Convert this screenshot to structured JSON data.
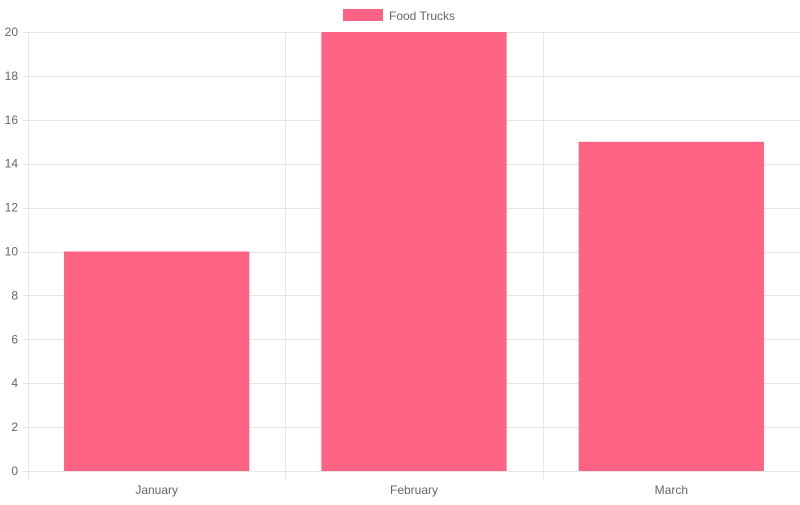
{
  "chart_data": {
    "type": "bar",
    "categories": [
      "January",
      "February",
      "March"
    ],
    "series": [
      {
        "name": "Food Trucks",
        "values": [
          10,
          20,
          15
        ],
        "color": "#ff6384"
      }
    ],
    "ylim": [
      0,
      20
    ],
    "yticks": [
      0,
      2,
      4,
      6,
      8,
      10,
      12,
      14,
      16,
      18,
      20
    ],
    "grid": true,
    "legend_position": "top-center",
    "gridline_color": "#e5e5e5"
  }
}
